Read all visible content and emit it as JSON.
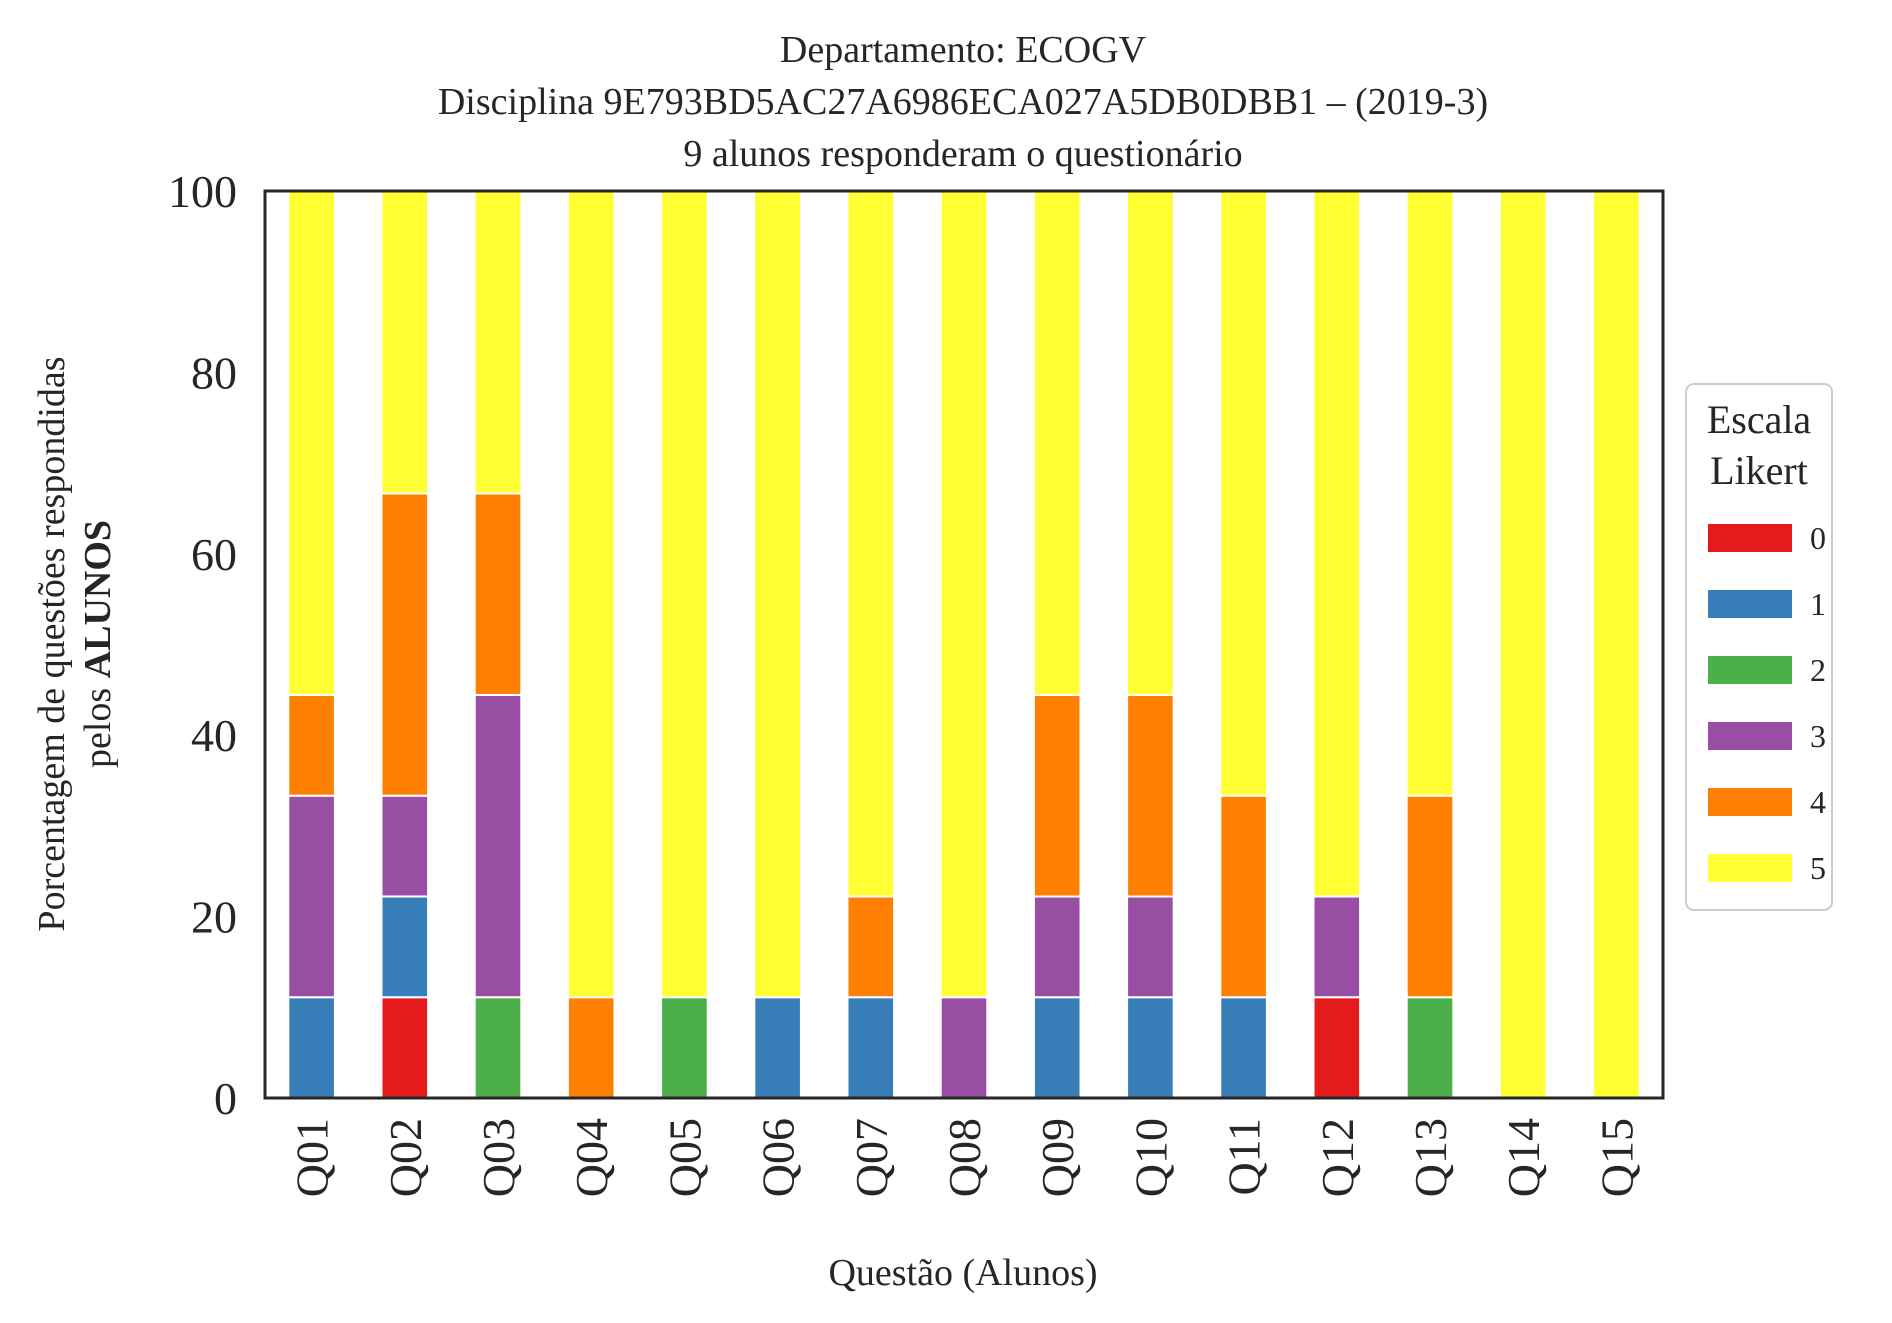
{
  "chart_data": {
    "type": "bar",
    "stacked": true,
    "title_lines": [
      "Departamento: ECOGV",
      "Disciplina 9E793BD5AC27A6986ECA027A5DB0DBB1 – (2019-3)",
      "9 alunos responderam o questionário"
    ],
    "xlabel": "Questão (Alunos)",
    "ylabel_line1": "Porcentagem de questões respondidas",
    "ylabel_line2_prefix": "pelos ",
    "ylabel_line2_bold": "ALUNOS",
    "ylim": [
      0,
      100
    ],
    "yticks": [
      "0",
      "20",
      "40",
      "60",
      "80",
      "100"
    ],
    "categories": [
      "Q01",
      "Q02",
      "Q03",
      "Q04",
      "Q05",
      "Q06",
      "Q07",
      "Q08",
      "Q09",
      "Q10",
      "Q11",
      "Q12",
      "Q13",
      "Q14",
      "Q15"
    ],
    "legend": {
      "title_lines": [
        "Escala",
        "Likert"
      ],
      "position": "right"
    },
    "series": [
      {
        "name": "0",
        "color": "#e41a1c",
        "values": [
          0,
          11.11,
          0,
          0,
          0,
          0,
          0,
          0,
          0,
          0,
          0,
          11.11,
          0,
          0,
          0
        ]
      },
      {
        "name": "1",
        "color": "#377eb8",
        "values": [
          11.11,
          11.11,
          0,
          0,
          0,
          11.11,
          11.11,
          0,
          11.11,
          11.11,
          11.11,
          0,
          0,
          0,
          0
        ]
      },
      {
        "name": "2",
        "color": "#4daf4a",
        "values": [
          0,
          0,
          11.11,
          0,
          11.11,
          0,
          0,
          0,
          0,
          0,
          0,
          0,
          11.11,
          0,
          0
        ]
      },
      {
        "name": "3",
        "color": "#984ea3",
        "values": [
          22.22,
          11.11,
          33.33,
          0,
          0,
          0,
          0,
          11.11,
          11.11,
          11.11,
          0,
          11.11,
          0,
          0,
          0
        ]
      },
      {
        "name": "4",
        "color": "#ff7f00",
        "values": [
          11.11,
          33.33,
          22.22,
          11.11,
          0,
          0,
          11.11,
          0,
          22.22,
          22.22,
          22.22,
          0,
          22.22,
          0,
          0
        ]
      },
      {
        "name": "5",
        "color": "#ffff33",
        "values": [
          55.56,
          33.33,
          33.33,
          88.89,
          88.89,
          88.89,
          77.78,
          88.89,
          55.56,
          55.56,
          66.67,
          77.78,
          66.67,
          100,
          100
        ]
      }
    ]
  }
}
